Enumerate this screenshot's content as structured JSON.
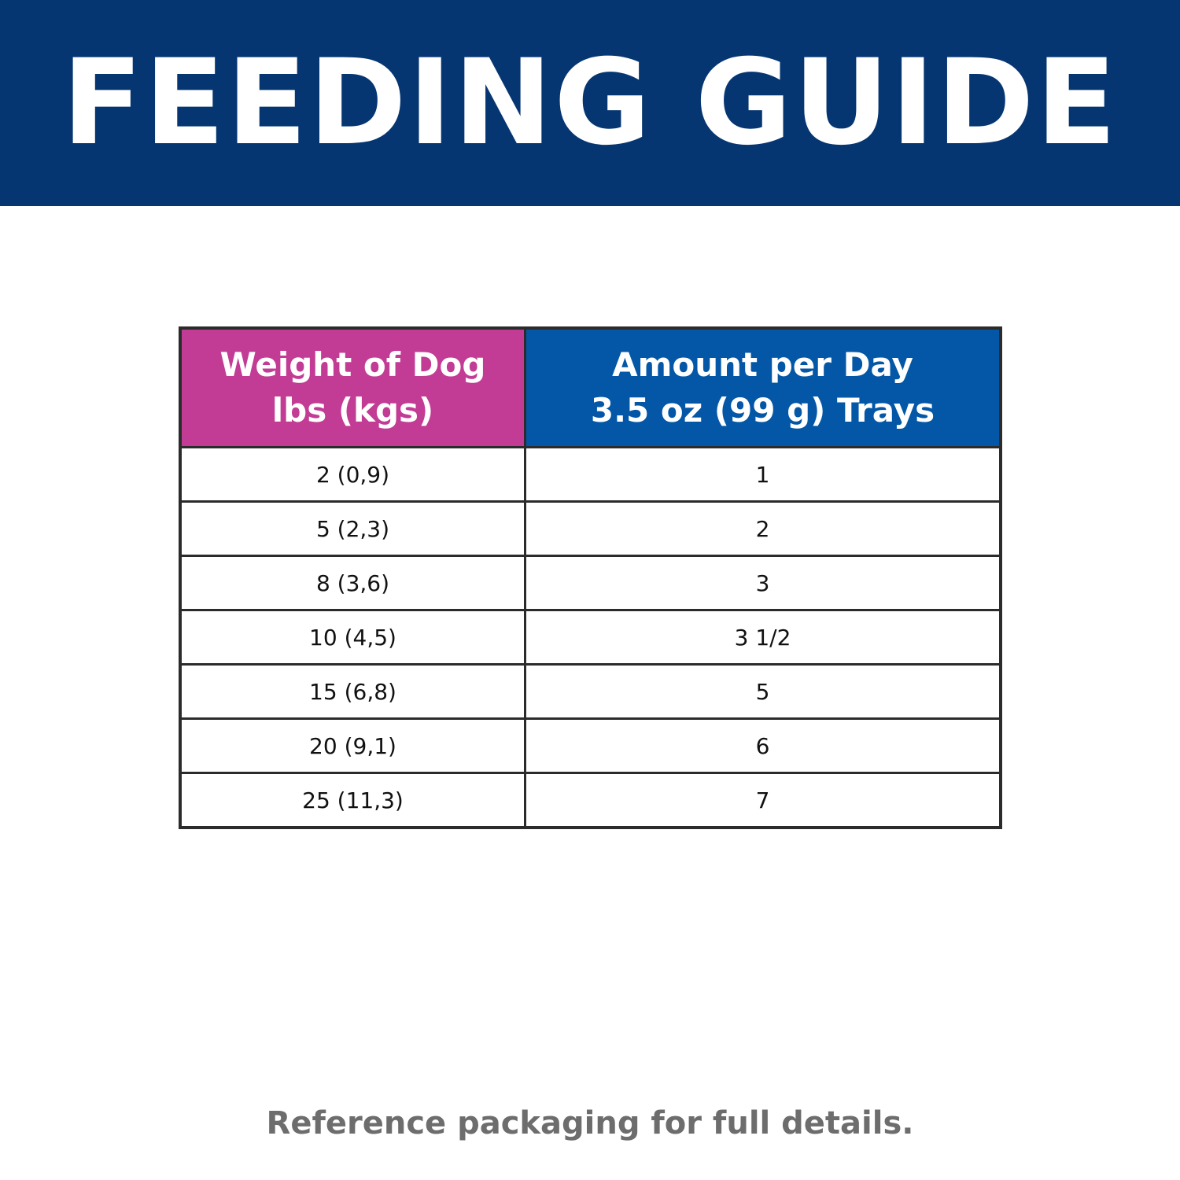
{
  "header": {
    "title": "FEEDING GUIDE"
  },
  "table": {
    "columns": [
      [
        "Weight of Dog",
        "lbs (kgs)"
      ],
      [
        "Amount per Day",
        "3.5 oz (99 g) Trays"
      ]
    ],
    "rows": [
      [
        "2 (0,9)",
        "1"
      ],
      [
        "5 (2,3)",
        "2"
      ],
      [
        "8 (3,6)",
        "3"
      ],
      [
        "10 (4,5)",
        "3 1/2"
      ],
      [
        "15 (6,8)",
        "5"
      ],
      [
        "20 (9,1)",
        "6"
      ],
      [
        "25 (11,3)",
        "7"
      ]
    ]
  },
  "footer": {
    "note": "Reference packaging for full details."
  }
}
